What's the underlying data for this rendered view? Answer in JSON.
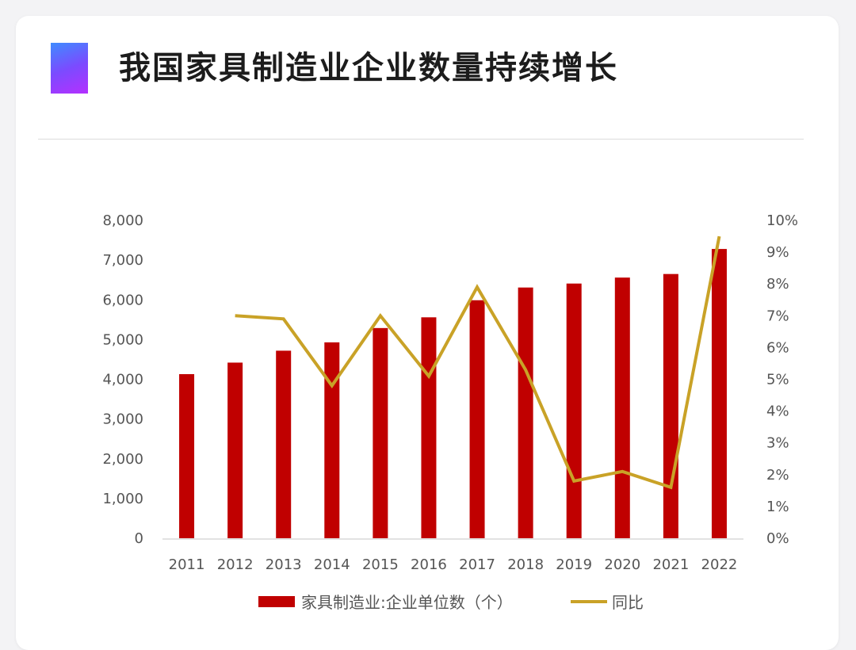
{
  "header": {
    "title": "我国家具制造业企业数量持续增长"
  },
  "colors": {
    "bar": "#c00000",
    "line": "#c9a227",
    "accent_start": "#3f8cff",
    "accent_end": "#b430ff"
  },
  "chart_data": {
    "type": "bar",
    "title": "",
    "categories": [
      "2011",
      "2012",
      "2013",
      "2014",
      "2015",
      "2016",
      "2017",
      "2018",
      "2019",
      "2020",
      "2021",
      "2022"
    ],
    "series": [
      {
        "name": "家具制造业:企业单位数（个）",
        "type": "bar",
        "axis": "left",
        "values": [
          4130,
          4420,
          4720,
          4930,
          5290,
          5560,
          5990,
          6310,
          6410,
          6560,
          6650,
          7280
        ]
      },
      {
        "name": "同比",
        "type": "line",
        "axis": "right",
        "values": [
          null,
          7.0,
          6.9,
          4.8,
          7.0,
          5.1,
          7.9,
          5.3,
          1.8,
          2.1,
          1.6,
          9.5
        ]
      }
    ],
    "y_left": {
      "min": 0,
      "max": 8000,
      "ticks": [
        "0",
        "1,000",
        "2,000",
        "3,000",
        "4,000",
        "5,000",
        "6,000",
        "7,000",
        "8,000"
      ]
    },
    "y_right": {
      "min": 0,
      "max": 10,
      "unit": "%",
      "ticks": [
        "0%",
        "1%",
        "2%",
        "3%",
        "4%",
        "5%",
        "6%",
        "7%",
        "8%",
        "9%",
        "10%"
      ]
    },
    "grid": false,
    "legend_position": "bottom"
  }
}
